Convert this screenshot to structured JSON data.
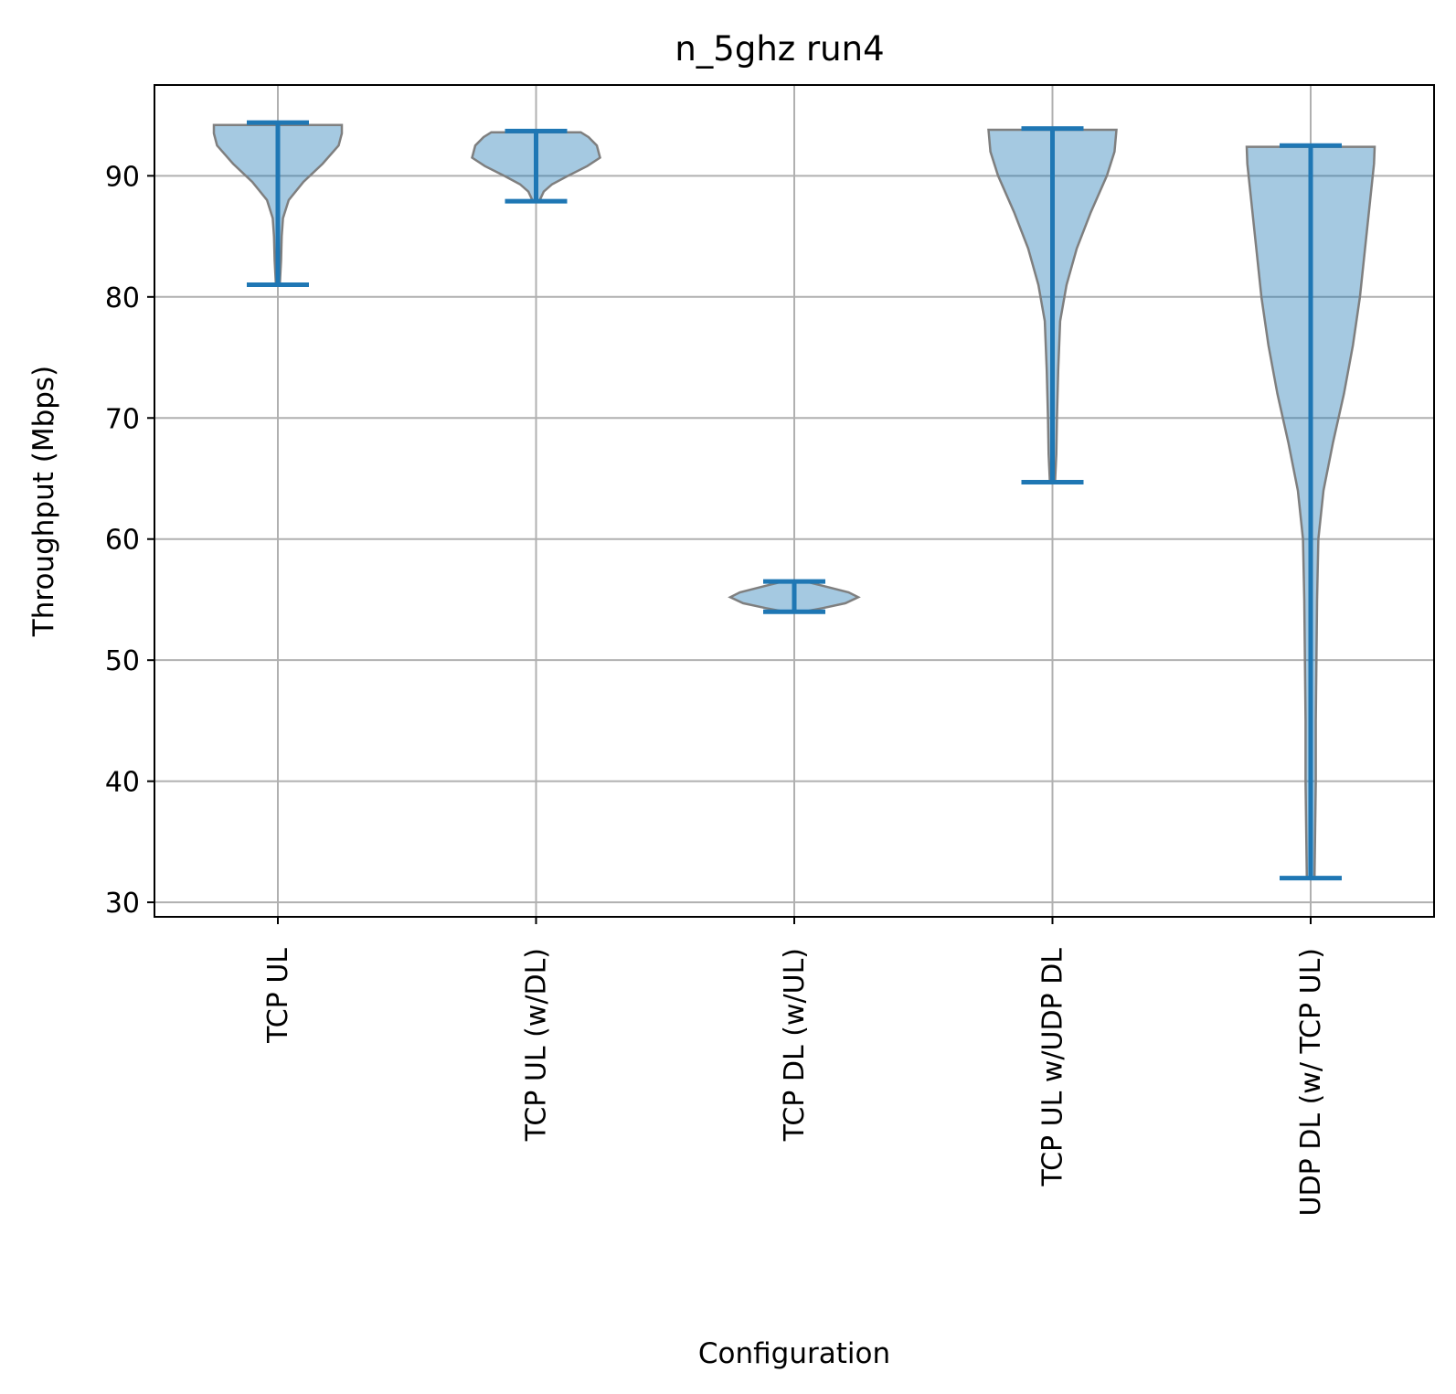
{
  "chart_data": {
    "type": "violin",
    "title": "n_5ghz run4",
    "xlabel": "Configuration",
    "ylabel": "Throughput (Mbps)",
    "ylim": [
      28.8,
      97.5
    ],
    "yticks": [
      30,
      40,
      50,
      60,
      70,
      80,
      90
    ],
    "grid": true,
    "colors": {
      "body": "#1f77b4",
      "edge": "#7f7f7f",
      "lines": "#1f77b4"
    },
    "categories": [
      "TCP  UL",
      "TCP UL (w/DL)",
      "TCP DL (w/UL)",
      "TCP  UL w/UDP DL",
      "UDP DL (w/ TCP UL)"
    ],
    "violins": [
      {
        "min": 81.0,
        "max": 94.4,
        "profile": [
          [
            81.0,
            0.03
          ],
          [
            83.0,
            0.05
          ],
          [
            85.0,
            0.06
          ],
          [
            86.5,
            0.08
          ],
          [
            88.0,
            0.17
          ],
          [
            89.5,
            0.4
          ],
          [
            91.0,
            0.7
          ],
          [
            92.5,
            0.95
          ],
          [
            93.5,
            1.0
          ],
          [
            94.2,
            1.0
          ]
        ]
      },
      {
        "min": 87.9,
        "max": 93.7,
        "profile": [
          [
            87.9,
            0.05
          ],
          [
            88.7,
            0.12
          ],
          [
            89.3,
            0.25
          ],
          [
            90.0,
            0.5
          ],
          [
            90.8,
            0.8
          ],
          [
            91.5,
            1.0
          ],
          [
            92.5,
            0.95
          ],
          [
            93.2,
            0.82
          ],
          [
            93.6,
            0.7
          ]
        ]
      },
      {
        "min": 54.0,
        "max": 56.5,
        "profile": [
          [
            54.0,
            0.15
          ],
          [
            54.3,
            0.45
          ],
          [
            54.7,
            0.8
          ],
          [
            55.2,
            1.0
          ],
          [
            55.6,
            0.85
          ],
          [
            56.0,
            0.55
          ],
          [
            56.4,
            0.25
          ],
          [
            56.5,
            0.15
          ]
        ]
      },
      {
        "min": 64.7,
        "max": 93.9,
        "profile": [
          [
            64.7,
            0.04
          ],
          [
            67.0,
            0.06
          ],
          [
            70.0,
            0.07
          ],
          [
            74.0,
            0.09
          ],
          [
            78.0,
            0.12
          ],
          [
            81.0,
            0.22
          ],
          [
            84.0,
            0.38
          ],
          [
            87.0,
            0.6
          ],
          [
            90.0,
            0.85
          ],
          [
            92.0,
            0.97
          ],
          [
            93.8,
            1.0
          ]
        ]
      },
      {
        "min": 32.0,
        "max": 92.5,
        "profile": [
          [
            32.0,
            0.06
          ],
          [
            36.0,
            0.07
          ],
          [
            40.0,
            0.08
          ],
          [
            45.0,
            0.08
          ],
          [
            50.0,
            0.09
          ],
          [
            55.0,
            0.1
          ],
          [
            60.0,
            0.12
          ],
          [
            64.0,
            0.2
          ],
          [
            68.0,
            0.35
          ],
          [
            72.0,
            0.52
          ],
          [
            76.0,
            0.66
          ],
          [
            80.0,
            0.77
          ],
          [
            84.0,
            0.85
          ],
          [
            88.0,
            0.93
          ],
          [
            91.0,
            0.99
          ],
          [
            92.4,
            1.0
          ]
        ]
      }
    ]
  }
}
